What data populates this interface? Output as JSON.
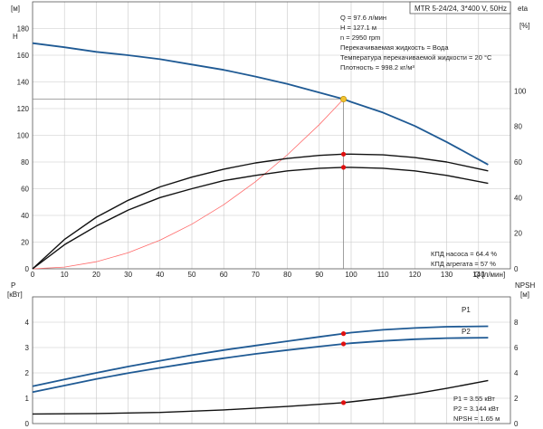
{
  "pump_label": "MTR 5-24/24, 3*400 V, 50Hz",
  "top_panel": {
    "left_axis": {
      "top": "[м]",
      "bottom": "H"
    },
    "right_axis": {
      "top": "eta",
      "bottom": "[%]"
    },
    "x_axis_label": "Q [л/мин]",
    "info_lines": [
      "Q = 97.6 л/мин",
      "H = 127.1 м",
      "n = 2950 rpm",
      "Перекачиваемая жидкость = Вода",
      "Температура перекачиваемой жидкости = 20 °C",
      "Плотность = 998.2 кг/м³"
    ],
    "eff_lines": [
      "КПД насоса = 64.4 %",
      "КПД агрегата = 57 %"
    ]
  },
  "bottom_panel": {
    "left_axis": {
      "top": "P",
      "bottom": "[кВт]"
    },
    "right_axis": {
      "top": "NPSH",
      "bottom": "[м]"
    },
    "curve_labels": [
      "P1",
      "P2"
    ],
    "info_lines": [
      "P1 = 3.55 кВт",
      "P2 = 3.144 кВт",
      "NPSH = 1.65 м"
    ]
  },
  "colors": {
    "head": "#1f5a94",
    "efficiency": "#111111",
    "system": "#ff6a6a",
    "power": "#1f5a94",
    "npsh": "#111111",
    "duty_point": "#f2c230",
    "marker": "#e01010"
  },
  "chart_data": [
    {
      "type": "line",
      "title": "",
      "xlabel": "Q [л/мин]",
      "ylabel": "H [м]",
      "y2label": "eta [%]",
      "xlim": [
        0,
        150
      ],
      "ylim": [
        0,
        200
      ],
      "y2lim": [
        0,
        150
      ],
      "x_ticks": [
        0,
        10,
        20,
        30,
        40,
        50,
        60,
        70,
        80,
        90,
        100,
        110,
        120,
        130,
        140
      ],
      "y_ticks": [
        0,
        20,
        40,
        60,
        80,
        100,
        120,
        140,
        160,
        180
      ],
      "y2_ticks": [
        0,
        20,
        40,
        60,
        80,
        100
      ],
      "grid": true,
      "series": [
        {
          "name": "H",
          "axis": "left",
          "color": "#1f5a94",
          "x": [
            0,
            10,
            20,
            30,
            40,
            50,
            60,
            70,
            80,
            90,
            97.6,
            100,
            110,
            120,
            130,
            143
          ],
          "y": [
            169,
            166,
            162.5,
            160,
            157,
            153,
            149,
            144,
            138.5,
            132,
            127.1,
            125,
            117,
            107,
            95,
            78
          ]
        },
        {
          "name": "H system",
          "axis": "left",
          "color": "#ff6a6a",
          "x": [
            0,
            10,
            20,
            30,
            40,
            50,
            60,
            70,
            80,
            90,
            97.6
          ],
          "y": [
            0,
            1.3,
            5.3,
            12,
            21.4,
            33.4,
            48,
            65.3,
            85.4,
            108,
            127.1
          ]
        },
        {
          "name": "КПД насоса",
          "axis": "right",
          "color": "#111111",
          "x": [
            0,
            10,
            20,
            30,
            40,
            50,
            60,
            70,
            80,
            90,
            97.6,
            100,
            110,
            120,
            130,
            143
          ],
          "y": [
            0,
            16.5,
            29,
            38.5,
            46,
            51.5,
            56,
            59.5,
            62,
            63.7,
            64.4,
            64.4,
            64,
            62.5,
            60,
            55
          ]
        },
        {
          "name": "КПД агрегата",
          "axis": "right",
          "color": "#111111",
          "x": [
            0,
            10,
            20,
            30,
            40,
            50,
            60,
            70,
            80,
            90,
            97.6,
            100,
            110,
            120,
            130,
            143
          ],
          "y": [
            0,
            13.5,
            24,
            33,
            40,
            45,
            49.5,
            52.5,
            55,
            56.5,
            57,
            57,
            56.5,
            55,
            52.5,
            48
          ]
        }
      ],
      "duty_point": {
        "x": 97.6,
        "y": 127.1
      },
      "markers": [
        {
          "series": "КПД насоса",
          "x": 97.6,
          "y": 64.4
        },
        {
          "series": "КПД агрегата",
          "x": 97.6,
          "y": 57
        }
      ]
    },
    {
      "type": "line",
      "title": "",
      "xlabel": "",
      "ylabel": "P [кВт]",
      "y2label": "NPSH [м]",
      "xlim": [
        0,
        150
      ],
      "ylim": [
        0,
        5
      ],
      "y2lim": [
        0,
        10
      ],
      "y_ticks": [
        0,
        1,
        2,
        3,
        4
      ],
      "y2_ticks": [
        0,
        2,
        4,
        6,
        8
      ],
      "grid": true,
      "series": [
        {
          "name": "P1",
          "axis": "left",
          "color": "#1f5a94",
          "x": [
            0,
            10,
            20,
            30,
            40,
            50,
            60,
            70,
            80,
            90,
            97.6,
            100,
            110,
            120,
            130,
            143
          ],
          "y": [
            1.47,
            1.74,
            2.0,
            2.25,
            2.48,
            2.7,
            2.9,
            3.08,
            3.25,
            3.42,
            3.55,
            3.59,
            3.7,
            3.77,
            3.82,
            3.84
          ]
        },
        {
          "name": "P2",
          "axis": "left",
          "color": "#1f5a94",
          "x": [
            0,
            10,
            20,
            30,
            40,
            50,
            60,
            70,
            80,
            90,
            97.6,
            100,
            110,
            120,
            130,
            143
          ],
          "y": [
            1.24,
            1.5,
            1.76,
            1.99,
            2.2,
            2.4,
            2.58,
            2.75,
            2.9,
            3.04,
            3.144,
            3.17,
            3.26,
            3.33,
            3.37,
            3.39
          ]
        },
        {
          "name": "NPSH",
          "axis": "right",
          "color": "#111111",
          "x": [
            0,
            20,
            40,
            60,
            80,
            97.6,
            110,
            120,
            130,
            143
          ],
          "y": [
            0.76,
            0.79,
            0.88,
            1.08,
            1.35,
            1.65,
            2.0,
            2.35,
            2.78,
            3.4
          ]
        }
      ],
      "markers": [
        {
          "series": "P1",
          "x": 97.6,
          "y": 3.55
        },
        {
          "series": "P2",
          "x": 97.6,
          "y": 3.144
        },
        {
          "series": "NPSH",
          "x": 97.6,
          "y": 1.65
        }
      ]
    }
  ]
}
